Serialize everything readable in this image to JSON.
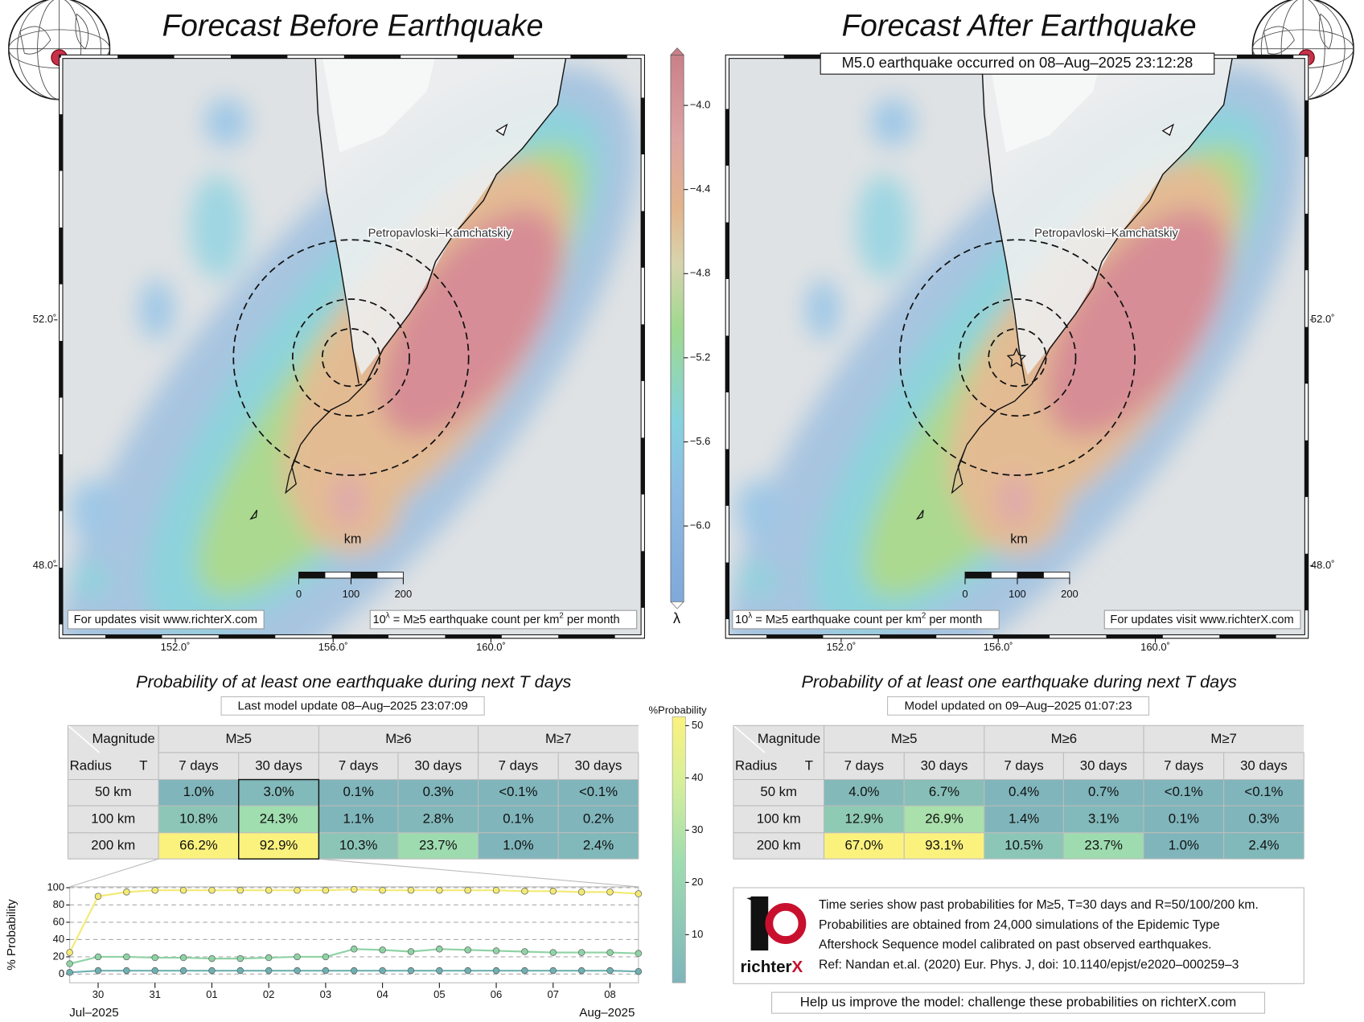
{
  "left_panel": {
    "title": "Forecast Before Earthquake",
    "table_title": "Probability of at least one earthquake during next T days",
    "table_subtitle": "Last model update 08–Aug–2025 23:07:09",
    "table": {
      "rows": [
        {
          "radius": "50 km",
          "cells": [
            "1.0%",
            "3.0%",
            "0.1%",
            "0.3%",
            "<0.1%",
            "<0.1%"
          ]
        },
        {
          "radius": "100 km",
          "cells": [
            "10.8%",
            "24.3%",
            "1.1%",
            "2.8%",
            "0.1%",
            "0.2%"
          ]
        },
        {
          "radius": "200 km",
          "cells": [
            "66.2%",
            "92.9%",
            "10.3%",
            "23.7%",
            "1.0%",
            "2.4%"
          ]
        }
      ]
    }
  },
  "right_panel": {
    "title": "Forecast After Earthquake",
    "event": "M5.0 earthquake occurred on 08–Aug–2025 23:12:28",
    "table_title": "Probability of at least one earthquake during next T days",
    "table_subtitle": "Model updated on 09–Aug–2025 01:07:23",
    "table": {
      "rows": [
        {
          "radius": "50 km",
          "cells": [
            "4.0%",
            "6.7%",
            "0.4%",
            "0.7%",
            "<0.1%",
            "<0.1%"
          ]
        },
        {
          "radius": "100 km",
          "cells": [
            "12.9%",
            "26.9%",
            "1.4%",
            "3.1%",
            "0.1%",
            "0.3%"
          ]
        },
        {
          "radius": "200 km",
          "cells": [
            "67.0%",
            "93.1%",
            "10.5%",
            "23.7%",
            "1.0%",
            "2.4%"
          ]
        }
      ]
    }
  },
  "map": {
    "city": "Petropavloski–Kamchatskiy",
    "scale_unit": "km",
    "scale_ticks": [
      0,
      100,
      200
    ],
    "updates_note": "For updates visit www.richterX.com",
    "lambda_note": [
      "10",
      "λ",
      " = M≥5 earthquake count per km",
      "2",
      " per month"
    ],
    "xlim": [
      149.1,
      163.85
    ],
    "ylim": [
      46.85,
      56.28
    ],
    "xticks": [
      {
        "value": 152,
        "label": "152.0˚"
      },
      {
        "value": 156,
        "label": "156.0˚"
      },
      {
        "value": 160,
        "label": "160.0˚"
      }
    ],
    "yticks": [
      {
        "value": 52,
        "label": "52.0˚"
      },
      {
        "value": 48,
        "label": "48.0˚"
      }
    ]
  },
  "lambda_colorbar": {
    "label": "λ",
    "ylim": [
      -6.36,
      -3.76
    ],
    "yticks": [
      {
        "value": -4.0,
        "label": "−4.0"
      },
      {
        "value": -4.4,
        "label": "−4.4"
      },
      {
        "value": -4.8,
        "label": "−4.8"
      },
      {
        "value": -5.2,
        "label": "−5.2"
      },
      {
        "value": -5.6,
        "label": "−5.6"
      },
      {
        "value": -6.0,
        "label": "−6.0"
      }
    ]
  },
  "probability_colorbar": {
    "label": "%Probability",
    "ylim": [
      0.8,
      51.7
    ],
    "yticks": [
      10,
      20,
      30,
      40,
      50
    ]
  },
  "table_header": {
    "magnitude": "Magnitude",
    "radius": "Radius",
    "t": "T",
    "groups": [
      "M≥5",
      "M≥6",
      "M≥7"
    ],
    "periods": [
      "7 days",
      "30 days"
    ]
  },
  "chart_data": {
    "type": "line",
    "ylabel": "% Probability",
    "x": [
      0.5,
      1.0,
      1.5,
      2.0,
      2.5,
      3.0,
      3.5,
      4.0,
      4.5,
      5.0,
      5.5,
      6.0,
      6.5,
      7.0,
      7.5,
      8.0,
      8.5,
      9.0,
      9.5,
      10.0,
      10.5
    ],
    "series": [
      {
        "name": "200 km",
        "color": "#f3ea74",
        "values": [
          25,
          90,
          95,
          97,
          97,
          97,
          97,
          97,
          97,
          97,
          98,
          97,
          97,
          97,
          97,
          97,
          96,
          96,
          95,
          95,
          93
        ]
      },
      {
        "name": "100 km",
        "color": "#8fd3a5",
        "values": [
          12,
          20,
          20,
          19,
          19,
          18,
          18,
          19,
          20,
          20,
          29,
          28,
          26,
          29,
          28,
          27,
          26,
          25,
          25,
          25,
          24
        ]
      },
      {
        "name": "50 km",
        "color": "#6fb0b2",
        "values": [
          2,
          4,
          4,
          4,
          4,
          4,
          4,
          4,
          4,
          4,
          4,
          4,
          4,
          4,
          4,
          4,
          4,
          4,
          4,
          4,
          3
        ]
      }
    ],
    "xlim": [
      0.5,
      10.5
    ],
    "ylim": [
      -10,
      101
    ],
    "yticks": [
      0,
      20,
      40,
      60,
      80,
      100
    ],
    "xticks": [
      {
        "value": 1,
        "label": "30"
      },
      {
        "value": 2,
        "label": "31"
      },
      {
        "value": 3,
        "label": "01"
      },
      {
        "value": 4,
        "label": "02"
      },
      {
        "value": 5,
        "label": "03"
      },
      {
        "value": 6,
        "label": "04"
      },
      {
        "value": 7,
        "label": "05"
      },
      {
        "value": 8,
        "label": "06"
      },
      {
        "value": 9,
        "label": "07"
      },
      {
        "value": 10,
        "label": "08"
      }
    ],
    "month_labels": [
      "Jul–2025",
      "Aug–2025"
    ],
    "grid": true
  },
  "info": {
    "lines": [
      "Time series show past probabilities for M≥5, T=30 days and R=50/100/200 km.",
      "Probabilities are obtained from 24,000 simulations of the Epidemic Type",
      "Aftershock Sequence model calibrated on past observed earthquakes.",
      "Ref: Nandan et.al. (2020) Eur. Phys. J, doi: 10.1140/epjst/e2020–000259–3"
    ],
    "logo": [
      "richter",
      "X"
    ],
    "help": "Help us improve the model: challenge these probabilities on richterX.com"
  }
}
